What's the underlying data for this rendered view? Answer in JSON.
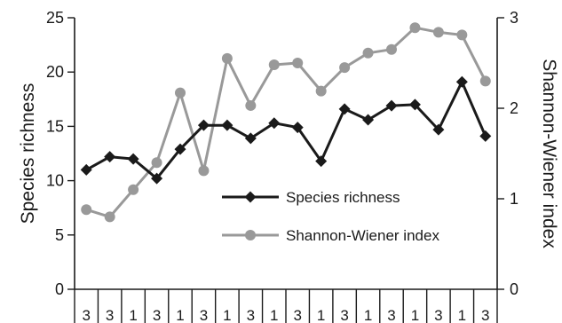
{
  "chart_data": {
    "type": "line",
    "title": "",
    "xlabel": "",
    "ylabel": "Species richness",
    "y2label": "Shannon-Wiener index",
    "categories": [
      "3",
      "3",
      "1",
      "3",
      "1",
      "3",
      "1",
      "3",
      "1",
      "3",
      "1",
      "3",
      "1",
      "3",
      "1",
      "3",
      "1",
      "3"
    ],
    "ylim": [
      0,
      25
    ],
    "yticks": [
      0,
      5,
      10,
      15,
      20,
      25
    ],
    "y2lim": [
      0,
      3
    ],
    "y2ticks": [
      0,
      1,
      2,
      3
    ],
    "grid": false,
    "legend_position": "center-right",
    "series": [
      {
        "name": "Species richness",
        "axis": "left",
        "color": "#1a1a1a",
        "marker": "diamond",
        "values": [
          11.0,
          12.2,
          12.0,
          10.2,
          12.9,
          15.1,
          15.1,
          13.9,
          15.3,
          14.9,
          11.8,
          16.6,
          15.6,
          16.9,
          17.0,
          14.7,
          19.1,
          14.1
        ]
      },
      {
        "name": "Shannon-Wiener index",
        "axis": "right",
        "color": "#999999",
        "marker": "circle",
        "values": [
          0.88,
          0.8,
          1.1,
          1.4,
          2.17,
          1.31,
          2.55,
          2.03,
          2.48,
          2.5,
          2.19,
          2.45,
          2.61,
          2.65,
          2.89,
          2.84,
          2.81,
          2.3
        ]
      }
    ]
  }
}
